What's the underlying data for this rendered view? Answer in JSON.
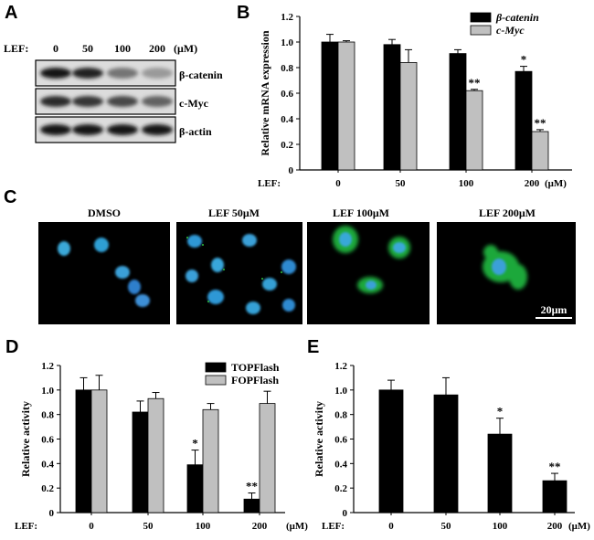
{
  "panel_a": {
    "label": "A",
    "header": [
      "LEF:",
      "0",
      "50",
      "100",
      "200",
      "(μM)"
    ],
    "blots": [
      {
        "name": "β-catenin",
        "intensity": [
          0.95,
          0.9,
          0.45,
          0.25
        ]
      },
      {
        "name": "c-Myc",
        "intensity": [
          0.85,
          0.8,
          0.7,
          0.55
        ]
      },
      {
        "name": "β-actin",
        "intensity": [
          0.95,
          0.95,
          0.95,
          0.95
        ]
      }
    ]
  },
  "panel_c": {
    "label": "C",
    "titles": [
      "DMSO",
      "LEF 50μM",
      "LEF 100μM",
      "LEF 200μM"
    ],
    "scale_bar": "20μm"
  },
  "colors": {
    "black_bar": "#000000",
    "gray_bar": "#c0c0c0"
  },
  "chart_data": [
    {
      "panel": "B",
      "type": "bar",
      "categories": [
        "0",
        "50",
        "100",
        "200"
      ],
      "x_prefix": "LEF:",
      "x_unit": "(μM)",
      "ylabel": "Relative mRNA expression",
      "ylim": [
        0,
        1.2
      ],
      "yticks": [
        "0",
        "0.2",
        "0.4",
        "0.6",
        "0.8",
        "1.0",
        "1.2"
      ],
      "legend_position": "top-right",
      "series": [
        {
          "name": "β-catenin",
          "color": "#000000",
          "values": [
            1.0,
            0.98,
            0.91,
            0.77
          ],
          "errors": [
            0.06,
            0.04,
            0.03,
            0.04
          ],
          "stars": [
            "",
            "",
            "",
            "*"
          ]
        },
        {
          "name": "c-Myc",
          "color": "#c0c0c0",
          "values": [
            1.0,
            0.84,
            0.62,
            0.3
          ],
          "errors": [
            0.01,
            0.1,
            0.01,
            0.015
          ],
          "stars": [
            "",
            "",
            "**",
            "**"
          ]
        }
      ]
    },
    {
      "panel": "D",
      "type": "bar",
      "categories": [
        "0",
        "50",
        "100",
        "200"
      ],
      "x_prefix": "LEF:",
      "x_unit": "(μM)",
      "ylabel": "Relative activity",
      "ylim": [
        0,
        1.2
      ],
      "yticks": [
        "0",
        "0.2",
        "0.4",
        "0.6",
        "0.8",
        "1.0",
        "1.2"
      ],
      "legend_position": "top-right",
      "series": [
        {
          "name": "TOPFlash",
          "color": "#000000",
          "values": [
            1.0,
            0.82,
            0.39,
            0.11
          ],
          "errors": [
            0.1,
            0.09,
            0.12,
            0.05
          ],
          "stars": [
            "",
            "",
            "*",
            "**"
          ]
        },
        {
          "name": "FOPFlash",
          "color": "#c0c0c0",
          "values": [
            1.0,
            0.93,
            0.84,
            0.89
          ],
          "errors": [
            0.12,
            0.05,
            0.05,
            0.1
          ],
          "stars": [
            "",
            "",
            "",
            ""
          ]
        }
      ]
    },
    {
      "panel": "E",
      "type": "bar",
      "categories": [
        "0",
        "50",
        "100",
        "200"
      ],
      "x_prefix": "LEF:",
      "x_unit": "(μM)",
      "ylabel": "Relative activity",
      "ylim": [
        0,
        1.2
      ],
      "yticks": [
        "0",
        "0.2",
        "0.4",
        "0.6",
        "0.8",
        "1.0",
        "1.2"
      ],
      "series": [
        {
          "color": "#000000",
          "values": [
            1.0,
            0.96,
            0.64,
            0.26
          ],
          "errors": [
            0.08,
            0.14,
            0.13,
            0.06
          ],
          "stars": [
            "",
            "",
            "*",
            "**"
          ]
        }
      ]
    }
  ]
}
